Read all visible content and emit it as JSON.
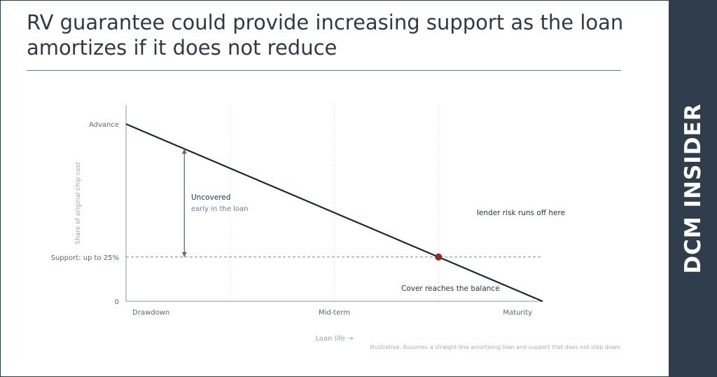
{
  "title": "RV guarantee could provide increasing support as the loan amortizes if it does not reduce",
  "brand": "DCM INSIDER",
  "chart_data": {
    "type": "line",
    "xlabel": "Loan life →",
    "ylabel": "Share of original chip cost",
    "x_ticks": [
      "Drawdown",
      "Mid-term",
      "Maturity"
    ],
    "y_ticks": [
      {
        "label": "Advance",
        "value": 1.0
      },
      {
        "label": "Support: up to 25%",
        "value": 0.25
      },
      {
        "label": "0",
        "value": 0
      }
    ],
    "xlim": [
      0,
      1
    ],
    "ylim": [
      0,
      1.1
    ],
    "grid": "vertical dotted",
    "series": [
      {
        "values": [
          [
            0,
            1.0
          ],
          [
            1,
            0
          ]
        ],
        "color": "#1f2632"
      }
    ],
    "support_level": 0.25,
    "crossover": {
      "x": 0.75,
      "y": 0.25,
      "color": "#8e2a2a"
    },
    "gap_arrow": {
      "x": 0.14,
      "y_from": 0.86,
      "y_to": 0.25
    },
    "annotations": {
      "uncovered_title": "Uncovered",
      "uncovered_sub": "early in the loan",
      "risk_runoff": "lender risk runs off here",
      "cover_balance": "Cover reaches the balance"
    },
    "footnote": "Illustrative. Assumes a straight-line amortising loan and support that does not step down."
  }
}
